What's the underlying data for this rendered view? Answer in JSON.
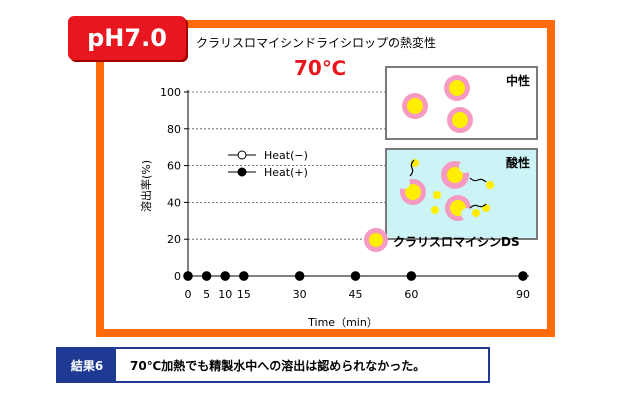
{
  "badge": "pH7.0",
  "title": "クラリスロマイシンドライシロップの熱変性",
  "temperature": "70℃",
  "panels": {
    "neutral_label": "中性",
    "acid_label": "酸性",
    "drug_label": "クラリスロマイシンDS"
  },
  "colors": {
    "frame": "#ff6a0a",
    "badge": "#e8161e",
    "particle_core": "#ffee00",
    "particle_ring": "#f59ac0",
    "acid_bg": "#ccf3f5",
    "result_bar": "#1f3a93"
  },
  "chart_data": {
    "type": "line",
    "xlabel": "Time（min）",
    "ylabel": "溶出率(%)",
    "x": [
      0,
      5,
      10,
      15,
      30,
      45,
      60,
      90
    ],
    "xticks": [
      "0",
      "5",
      "10",
      "15",
      "30",
      "45",
      "60",
      "90"
    ],
    "yticks": [
      "0",
      "20",
      "40",
      "60",
      "80",
      "100"
    ],
    "ylim": [
      0,
      100
    ],
    "grid": "horizontal dashed",
    "series": [
      {
        "name": "Heat(−)",
        "marker": "open-circle",
        "values": [
          0,
          0,
          0,
          0,
          0,
          0,
          0,
          0
        ]
      },
      {
        "name": "Heat(+)",
        "marker": "filled-circle",
        "values": [
          0,
          0,
          0,
          0,
          0,
          0,
          0,
          0
        ]
      }
    ],
    "legend_position": "left-middle"
  },
  "result": {
    "label": "結果6",
    "text": "70℃加熱でも精製水中への溶出は認められなかった。"
  }
}
